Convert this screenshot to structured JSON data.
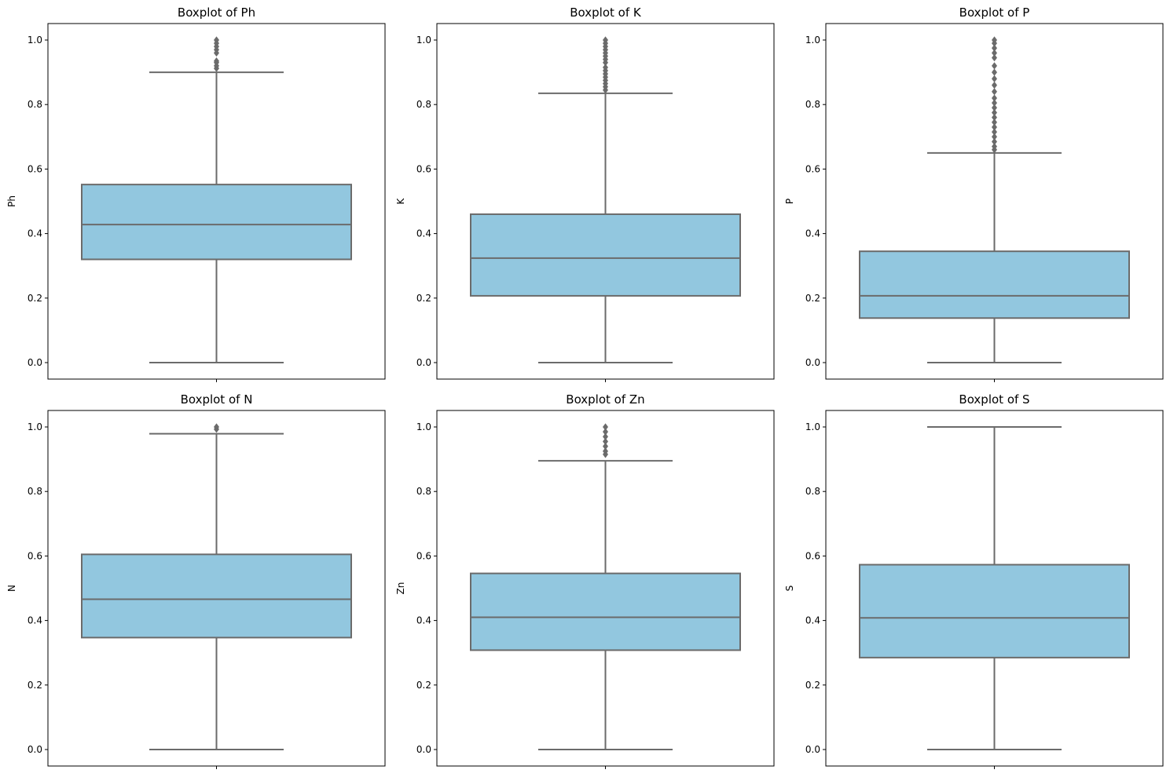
{
  "chart_data": [
    {
      "type": "boxplot",
      "title": "Boxplot of Ph",
      "ylabel": "Ph",
      "ylim": [
        -0.05,
        1.05
      ],
      "yticks": [
        "0.0",
        "0.2",
        "0.4",
        "0.6",
        "0.8",
        "1.0"
      ],
      "whisker_low": 0.0,
      "q1": 0.32,
      "median": 0.428,
      "q3": 0.552,
      "whisker_high": 0.9,
      "outliers": [
        0.912,
        0.92,
        0.93,
        0.935,
        0.96,
        0.97,
        0.98,
        0.99,
        1.0
      ]
    },
    {
      "type": "boxplot",
      "title": "Boxplot of K",
      "ylabel": "K",
      "ylim": [
        -0.05,
        1.05
      ],
      "yticks": [
        "0.0",
        "0.2",
        "0.4",
        "0.6",
        "0.8",
        "1.0"
      ],
      "whisker_low": 0.0,
      "q1": 0.207,
      "median": 0.324,
      "q3": 0.46,
      "whisker_high": 0.835,
      "outliers": [
        0.845,
        0.855,
        0.865,
        0.875,
        0.885,
        0.895,
        0.905,
        0.915,
        0.93,
        0.94,
        0.95,
        0.96,
        0.97,
        0.98,
        0.99,
        1.0
      ]
    },
    {
      "type": "boxplot",
      "title": "Boxplot of P",
      "ylabel": "P",
      "ylim": [
        -0.05,
        1.05
      ],
      "yticks": [
        "0.0",
        "0.2",
        "0.4",
        "0.6",
        "0.8",
        "1.0"
      ],
      "whisker_low": 0.0,
      "q1": 0.138,
      "median": 0.207,
      "q3": 0.345,
      "whisker_high": 0.65,
      "outliers": [
        0.66,
        0.67,
        0.685,
        0.7,
        0.715,
        0.73,
        0.745,
        0.76,
        0.775,
        0.79,
        0.805,
        0.82,
        0.84,
        0.86,
        0.88,
        0.9,
        0.92,
        0.945,
        0.96,
        0.975,
        0.99,
        1.0
      ]
    },
    {
      "type": "boxplot",
      "title": "Boxplot of N",
      "ylabel": "N",
      "ylim": [
        -0.05,
        1.05
      ],
      "yticks": [
        "0.0",
        "0.2",
        "0.4",
        "0.6",
        "0.8",
        "1.0"
      ],
      "whisker_low": 0.0,
      "q1": 0.347,
      "median": 0.466,
      "q3": 0.605,
      "whisker_high": 0.979,
      "outliers": [
        0.993,
        1.0
      ]
    },
    {
      "type": "boxplot",
      "title": "Boxplot of Zn",
      "ylabel": "Zn",
      "ylim": [
        -0.05,
        1.05
      ],
      "yticks": [
        "0.0",
        "0.2",
        "0.4",
        "0.6",
        "0.8",
        "1.0"
      ],
      "whisker_low": 0.0,
      "q1": 0.308,
      "median": 0.41,
      "q3": 0.546,
      "whisker_high": 0.895,
      "outliers": [
        0.915,
        0.925,
        0.94,
        0.955,
        0.97,
        0.985,
        1.0
      ]
    },
    {
      "type": "boxplot",
      "title": "Boxplot of S",
      "ylabel": "S",
      "ylim": [
        -0.05,
        1.05
      ],
      "yticks": [
        "0.0",
        "0.2",
        "0.4",
        "0.6",
        "0.8",
        "1.0"
      ],
      "whisker_low": 0.0,
      "q1": 0.285,
      "median": 0.408,
      "q3": 0.573,
      "whisker_high": 1.0,
      "outliers": []
    }
  ],
  "colors": {
    "box_fill": "#92c7df",
    "line": "#6b6b6b",
    "axis": "#000000"
  }
}
